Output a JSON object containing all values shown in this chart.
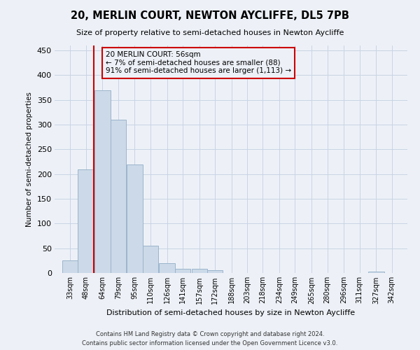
{
  "title": "20, MERLIN COURT, NEWTON AYCLIFFE, DL5 7PB",
  "subtitle": "Size of property relative to semi-detached houses in Newton Aycliffe",
  "xlabel": "Distribution of semi-detached houses by size in Newton Aycliffe",
  "ylabel": "Number of semi-detached properties",
  "footnote1": "Contains HM Land Registry data © Crown copyright and database right 2024.",
  "footnote2": "Contains public sector information licensed under the Open Government Licence v3.0.",
  "categories": [
    "33sqm",
    "48sqm",
    "64sqm",
    "79sqm",
    "95sqm",
    "110sqm",
    "126sqm",
    "141sqm",
    "157sqm",
    "172sqm",
    "188sqm",
    "203sqm",
    "218sqm",
    "234sqm",
    "249sqm",
    "265sqm",
    "280sqm",
    "296sqm",
    "311sqm",
    "327sqm",
    "342sqm"
  ],
  "bin_centers": [
    33,
    48,
    64,
    79,
    95,
    110,
    126,
    141,
    157,
    172,
    188,
    203,
    218,
    234,
    249,
    265,
    280,
    296,
    311,
    327,
    342
  ],
  "values": [
    25,
    210,
    370,
    310,
    220,
    55,
    20,
    8,
    8,
    5,
    0,
    0,
    0,
    0,
    0,
    0,
    0,
    0,
    0,
    3,
    0
  ],
  "bar_color": "#ccd9e8",
  "bar_edge_color": "#9ab5cc",
  "ylim": [
    0,
    460
  ],
  "yticks": [
    0,
    50,
    100,
    150,
    200,
    250,
    300,
    350,
    400,
    450
  ],
  "property_size": 56,
  "pct_smaller": 7,
  "count_smaller": 88,
  "pct_larger": 91,
  "count_larger": 1113,
  "red_line_color": "#cc0000",
  "grid_color": "#c8d4e4",
  "bg_color": "#edf1f7",
  "bin_width": 15
}
